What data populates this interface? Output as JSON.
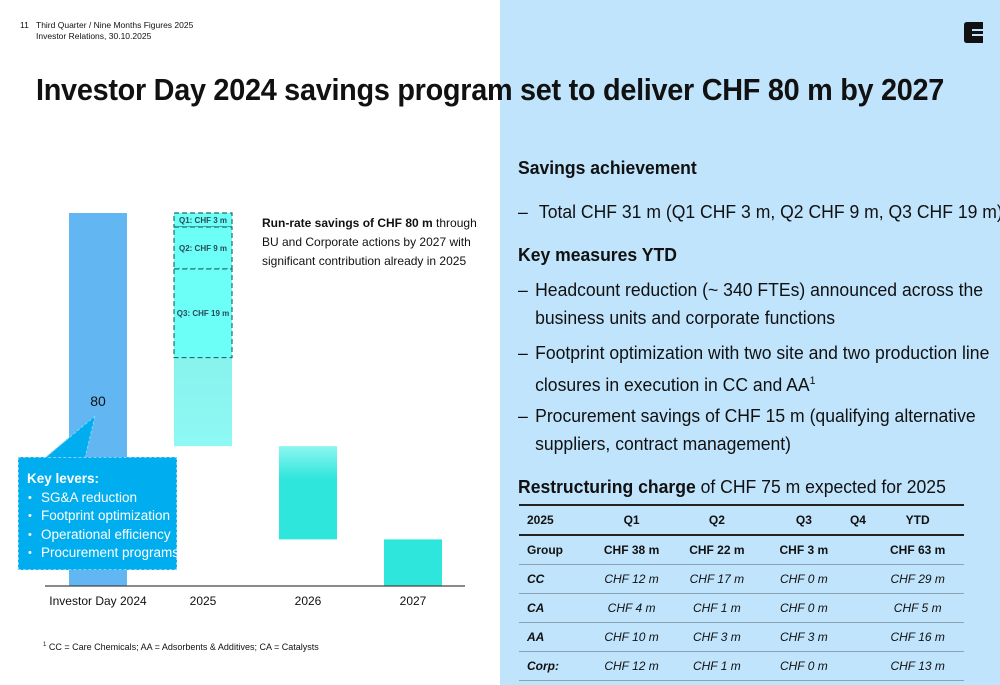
{
  "header": {
    "page_number": "11",
    "line1": "Third Quarter / Nine Months Figures 2025",
    "line2": "Investor Relations, 30.10.2025"
  },
  "title": "Investor Day 2024 savings program set to deliver CHF 80 m by 2027",
  "colors": {
    "right_panel": "#c0e4fc",
    "bar_total": "#62b6f2",
    "bar_cyan": "#2ee6dc",
    "bar_dashed": "#6bfff8",
    "callout": "#00aeef"
  },
  "chart_data": {
    "type": "bar",
    "subtype": "waterfall",
    "categories": [
      "Investor Day 2024",
      "2025",
      "2026",
      "2027"
    ],
    "values": [
      80,
      50,
      20,
      10
    ],
    "total_label": "80",
    "breakdown_2025": [
      {
        "label": "Q1: CHF 3 m",
        "value": 3
      },
      {
        "label": "Q2: CHF 9 m",
        "value": 9
      },
      {
        "label": "Q3: CHF 19 m",
        "value": 19
      }
    ],
    "ylim": [
      0,
      80
    ],
    "grid": false
  },
  "note": {
    "bold": "Run-rate savings of CHF 80 m",
    "rest": " through BU and Corporate actions by 2027 with significant contribution already in 2025"
  },
  "levers": {
    "heading": "Key levers:",
    "items": [
      "SG&A reduction",
      "Footprint optimization",
      "Operational efficiency",
      "Procurement programs"
    ]
  },
  "footnote": {
    "mark": "1",
    "text": " CC = Care Chemicals; AA = Adsorbents & Additives; CA = Catalysts"
  },
  "right": {
    "savings_heading": "Savings achievement",
    "savings_bullet": "Total CHF 31 m (Q1 CHF 3 m, Q2 CHF 9 m, Q3 CHF 19 m)",
    "measures_heading": "Key measures YTD",
    "measures": [
      {
        "l1": "Headcount reduction (~ 340 FTEs) announced across the",
        "l2": "business units and corporate functions"
      },
      {
        "l1": "Footprint optimization with two site and two production line",
        "l2": "closures in execution in CC and AA",
        "sup": "1"
      },
      {
        "l1": "Procurement savings of CHF 15 m (qualifying alternative",
        "l2": "suppliers, contract management)"
      }
    ],
    "dash": "–",
    "restructuring_bold": "Restructuring charge",
    "restructuring_rest": " of CHF 75 m expected for 2025"
  },
  "table": {
    "headers": [
      "2025",
      "Q1",
      "Q2",
      "Q3",
      "Q4",
      "YTD"
    ],
    "rows": [
      [
        "Group",
        "CHF 38 m",
        "CHF 22 m",
        "CHF 3 m",
        "",
        "CHF 63 m"
      ],
      [
        "CC",
        "CHF 12 m",
        "CHF 17 m",
        "CHF 0 m",
        "",
        "CHF 29 m"
      ],
      [
        "CA",
        "CHF 4 m",
        "CHF 1 m",
        "CHF 0 m",
        "",
        "CHF 5 m"
      ],
      [
        "AA",
        "CHF 10 m",
        "CHF 3 m",
        "CHF 3 m",
        "",
        "CHF 16 m"
      ],
      [
        "Corp:",
        "CHF 12 m",
        "CHF 1 m",
        "CHF 0 m",
        "",
        "CHF 13 m"
      ]
    ]
  }
}
